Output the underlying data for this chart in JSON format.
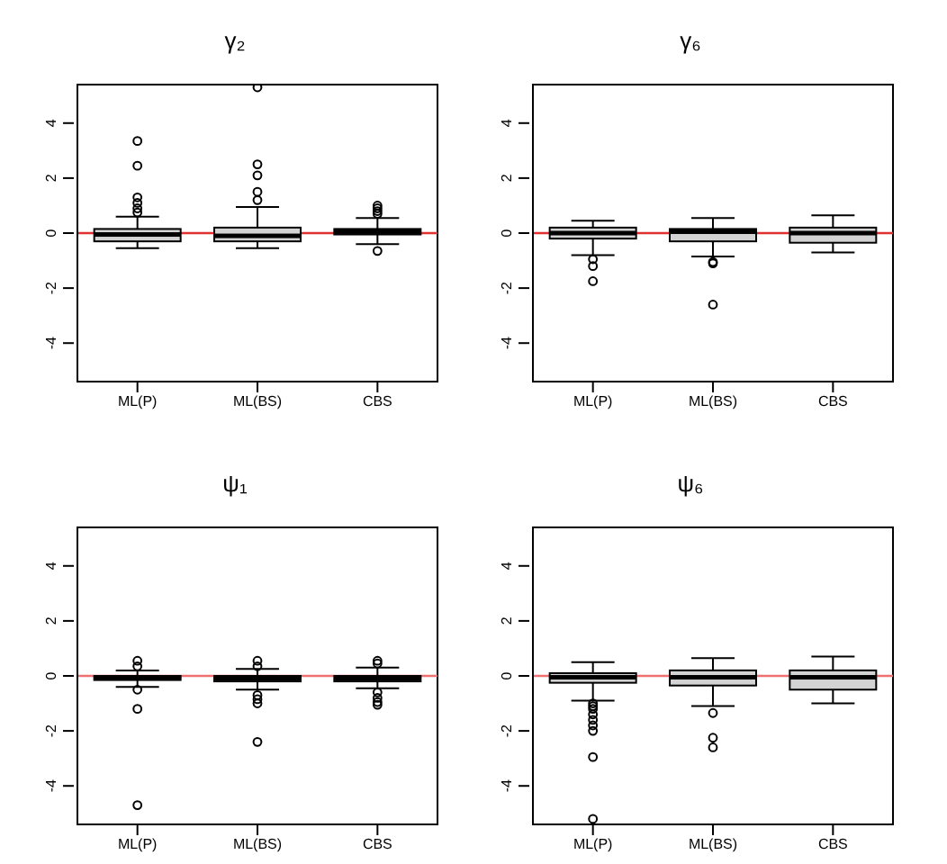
{
  "chart_data": [
    {
      "type": "box",
      "title": "γ₂",
      "categories": [
        "ML(P)",
        "ML(BS)",
        "CBS"
      ],
      "color": "#d3d3d3",
      "ylim": [
        -5.4,
        5.4
      ],
      "yticks": [
        -4,
        -2,
        0,
        2,
        4
      ],
      "grid": false,
      "legend": false,
      "ref_lines": [
        {
          "axis": "y",
          "value": 0,
          "color": "#e03030"
        }
      ],
      "boxes": [
        {
          "low": -0.55,
          "q1": -0.3,
          "median": -0.05,
          "q3": 0.15,
          "high": 0.6,
          "outliers": [
            0.75,
            0.9,
            1.1,
            1.3,
            2.45,
            3.35
          ]
        },
        {
          "low": -0.55,
          "q1": -0.3,
          "median": -0.1,
          "q3": 0.2,
          "high": 0.95,
          "outliers": [
            1.2,
            1.5,
            2.1,
            2.5,
            5.3
          ]
        },
        {
          "low": -0.4,
          "q1": -0.05,
          "median": 0.05,
          "q3": 0.15,
          "high": 0.55,
          "outliers": [
            0.7,
            0.8,
            0.9,
            1.0,
            -0.65
          ]
        }
      ]
    },
    {
      "type": "box",
      "title": "γ₆",
      "categories": [
        "ML(P)",
        "ML(BS)",
        "CBS"
      ],
      "color": "#d3d3d3",
      "ylim": [
        -5.4,
        5.4
      ],
      "yticks": [
        -4,
        -2,
        0,
        2,
        4
      ],
      "grid": false,
      "legend": false,
      "ref_lines": [
        {
          "axis": "y",
          "value": 0,
          "color": "#e03030"
        }
      ],
      "boxes": [
        {
          "low": -0.8,
          "q1": -0.2,
          "median": 0,
          "q3": 0.2,
          "high": 0.45,
          "outliers": [
            -0.95,
            -1.2,
            -1.75
          ]
        },
        {
          "low": -0.85,
          "q1": -0.3,
          "median": 0.05,
          "q3": 0.15,
          "high": 0.55,
          "outliers": [
            -1.05,
            -1.1,
            -2.6
          ]
        },
        {
          "low": -0.7,
          "q1": -0.35,
          "median": 0,
          "q3": 0.2,
          "high": 0.65
        }
      ]
    },
    {
      "type": "box",
      "title": "ψ₁",
      "categories": [
        "ML(P)",
        "ML(BS)",
        "CBS"
      ],
      "color": "#d3d3d3",
      "ylim": [
        -5.4,
        5.4
      ],
      "yticks": [
        -4,
        -2,
        0,
        2,
        4
      ],
      "grid": false,
      "legend": false,
      "ref_lines": [
        {
          "axis": "y",
          "value": 0,
          "color": "#f07070"
        }
      ],
      "boxes": [
        {
          "low": -0.4,
          "q1": -0.15,
          "median": -0.05,
          "q3": 0.0,
          "high": 0.2,
          "outliers": [
            0.35,
            0.55,
            -0.5,
            -1.2,
            -4.7
          ]
        },
        {
          "low": -0.5,
          "q1": -0.2,
          "median": -0.1,
          "q3": 0.0,
          "high": 0.25,
          "outliers": [
            0.35,
            0.55,
            -0.7,
            -0.85,
            -1.0,
            -2.4
          ]
        },
        {
          "low": -0.45,
          "q1": -0.2,
          "median": -0.1,
          "q3": 0.0,
          "high": 0.3,
          "outliers": [
            0.45,
            0.55,
            -0.6,
            -0.8,
            -0.95,
            -1.05
          ]
        }
      ]
    },
    {
      "type": "box",
      "title": "ψ₆",
      "categories": [
        "ML(P)",
        "ML(BS)",
        "CBS"
      ],
      "color": "#d3d3d3",
      "ylim": [
        -5.4,
        5.4
      ],
      "yticks": [
        -4,
        -2,
        0,
        2,
        4
      ],
      "grid": false,
      "legend": false,
      "ref_lines": [
        {
          "axis": "y",
          "value": 0,
          "color": "#f07070"
        }
      ],
      "boxes": [
        {
          "low": -0.9,
          "q1": -0.25,
          "median": -0.05,
          "q3": 0.1,
          "high": 0.5,
          "outliers": [
            -1.0,
            -1.1,
            -1.2,
            -1.4,
            -1.6,
            -1.8,
            -2.0,
            -2.95,
            -5.2
          ]
        },
        {
          "low": -1.1,
          "q1": -0.35,
          "median": -0.05,
          "q3": 0.2,
          "high": 0.65,
          "outliers": [
            -1.35,
            -2.25,
            -2.6
          ]
        },
        {
          "low": -1.0,
          "q1": -0.5,
          "median": -0.05,
          "q3": 0.2,
          "high": 0.7
        }
      ]
    }
  ]
}
